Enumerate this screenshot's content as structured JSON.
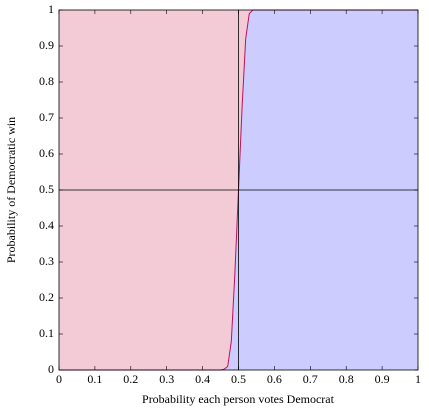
{
  "chart_data": {
    "type": "area",
    "x_label": "Probability each person votes Democrat",
    "y_label": "Probability of Democratic win",
    "x": [
      0,
      0.1,
      0.2,
      0.3,
      0.4,
      0.45,
      0.46,
      0.47,
      0.48,
      0.49,
      0.5,
      0.51,
      0.52,
      0.53,
      0.54,
      0.55,
      0.6,
      0.8,
      1
    ],
    "series": [
      {
        "color": "#c0105a",
        "values": [
          0,
          0,
          0,
          0,
          0,
          0,
          0.002,
          0.01,
          0.08,
          0.27,
          0.5,
          0.73,
          0.92,
          0.99,
          1,
          1,
          1,
          1,
          1
        ]
      }
    ],
    "fill_below": "#ccccff",
    "fill_above": "#f2cbd7",
    "reference_lines": {
      "x": 0.5,
      "y": 0.5
    },
    "xlim": [
      0,
      1
    ],
    "ylim": [
      0,
      1
    ],
    "xticks": [
      0,
      0.1,
      0.2,
      0.3,
      0.4,
      0.5,
      0.6,
      0.7,
      0.8,
      0.9,
      1
    ],
    "yticks": [
      0,
      0.1,
      0.2,
      0.3,
      0.4,
      0.5,
      0.6,
      0.7,
      0.8,
      0.9,
      1
    ]
  }
}
